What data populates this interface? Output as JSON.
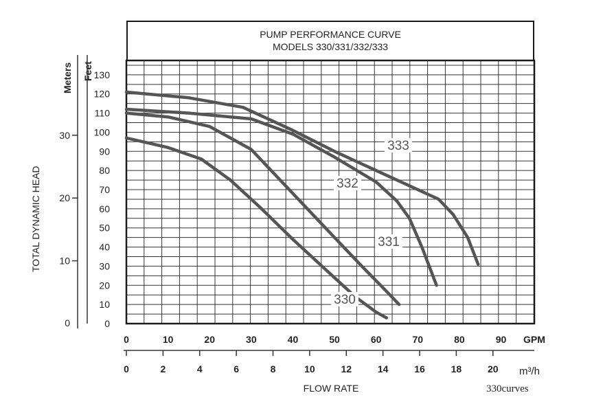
{
  "chart_data": {
    "type": "line",
    "title": "PUMP PERFORMANCE CURVE",
    "subtitle": "MODELS 330/331/332/333",
    "ylabel": "TOTAL DYNAMIC HEAD",
    "y_left_unit": "Meters",
    "y_right_unit": "Feet",
    "xlabel": "FLOW RATE",
    "x_unit_gpm": "GPM",
    "x_unit_m3h": "m³/h",
    "xlim_gpm": [
      0,
      90
    ],
    "ylim_feet": [
      0,
      135
    ],
    "x_ticks_gpm": [
      "0",
      "10",
      "20",
      "30",
      "40",
      "50",
      "60",
      "70",
      "80",
      "90"
    ],
    "x_ticks_m3h": [
      "0",
      "2",
      "4",
      "6",
      "8",
      "10",
      "12",
      "14",
      "16",
      "18",
      "20"
    ],
    "y_ticks_feet": [
      "0",
      "10",
      "20",
      "30",
      "40",
      "50",
      "60",
      "70",
      "80",
      "90",
      "100",
      "110",
      "120",
      "130"
    ],
    "y_ticks_meters": [
      "0",
      "10",
      "20",
      "30"
    ],
    "grid": true,
    "series": [
      {
        "name": "330",
        "x": [
          0,
          10,
          18,
          25,
          32,
          40,
          48,
          55,
          60,
          62.5
        ],
        "y": [
          97,
          92,
          86,
          75,
          61,
          44,
          28,
          14,
          6,
          3
        ]
      },
      {
        "name": "331",
        "x": [
          0,
          10,
          20,
          30,
          40,
          50,
          57,
          62,
          65.5
        ],
        "y": [
          110,
          108,
          103,
          91,
          68,
          45,
          29,
          18,
          10
        ]
      },
      {
        "name": "332",
        "x": [
          0,
          15,
          30,
          40,
          50,
          60,
          65,
          68,
          71,
          74.5
        ],
        "y": [
          112,
          110,
          107,
          99,
          87,
          74,
          64,
          55,
          40,
          20
        ]
      },
      {
        "name": "333",
        "x": [
          0,
          15,
          28,
          40,
          50,
          60,
          68,
          75,
          78.5,
          82,
          84.5
        ],
        "y": [
          121,
          118,
          113,
          101,
          90,
          80,
          72,
          65,
          57,
          45,
          31
        ]
      }
    ],
    "caption": "330curves"
  }
}
